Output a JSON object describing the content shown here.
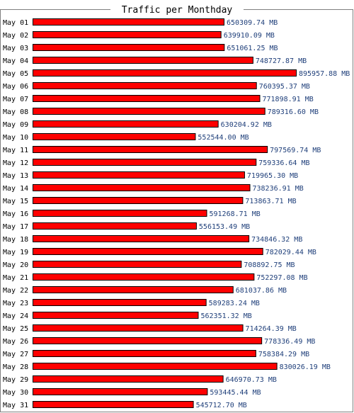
{
  "chart_data": {
    "type": "bar",
    "orientation": "horizontal",
    "title": "Traffic per Monthday",
    "unit": "MB",
    "bar_color": "#ff0000",
    "value_label_color": "#1f3f7a",
    "categories": [
      "May 01",
      "May 02",
      "May 03",
      "May 04",
      "May 05",
      "May 06",
      "May 07",
      "May 08",
      "May 09",
      "May 10",
      "May 11",
      "May 12",
      "May 13",
      "May 14",
      "May 15",
      "May 16",
      "May 17",
      "May 18",
      "May 19",
      "May 20",
      "May 21",
      "May 22",
      "May 23",
      "May 24",
      "May 25",
      "May 26",
      "May 27",
      "May 28",
      "May 29",
      "May 30",
      "May 31"
    ],
    "values": [
      650309.74,
      639910.09,
      651061.25,
      748727.87,
      895957.88,
      760395.37,
      771898.91,
      789316.6,
      630204.92,
      552544.0,
      797569.74,
      759336.64,
      719965.3,
      738236.91,
      713863.71,
      591268.71,
      556153.49,
      734846.32,
      782029.44,
      708892.75,
      752297.08,
      681037.86,
      589283.24,
      562351.32,
      714264.39,
      778336.49,
      758384.29,
      830026.19,
      646970.73,
      593445.44,
      545712.7
    ],
    "value_labels": [
      "650309.74 MB",
      "639910.09 MB",
      "651061.25 MB",
      "748727.87 MB",
      "895957.88 MB",
      "760395.37 MB",
      "771898.91 MB",
      "789316.60 MB",
      "630204.92 MB",
      "552544.00 MB",
      "797569.74 MB",
      "759336.64 MB",
      "719965.30 MB",
      "738236.91 MB",
      "713863.71 MB",
      "591268.71 MB",
      "556153.49 MB",
      "734846.32 MB",
      "782029.44 MB",
      "708892.75 MB",
      "752297.08 MB",
      "681037.86 MB",
      "589283.24 MB",
      "562351.32 MB",
      "714264.39 MB",
      "778336.49 MB",
      "758384.29 MB",
      "830026.19 MB",
      "646970.73 MB",
      "593445.44 MB",
      "545712.70 MB"
    ],
    "grid": false,
    "legend": "none"
  }
}
